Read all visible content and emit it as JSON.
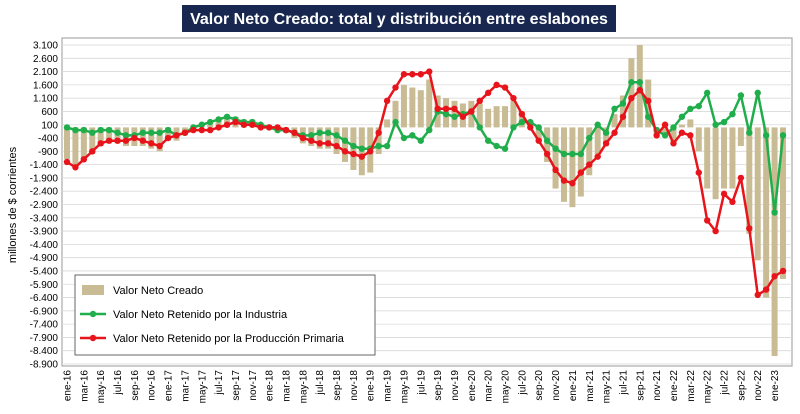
{
  "chart_data": {
    "type": "bar",
    "title": "Valor Neto Creado: total y distribución entre eslabones",
    "y_label": "millones de $ corrientes",
    "categories": [
      "ene-16",
      null,
      "mar-16",
      null,
      "may-16",
      null,
      "jul-16",
      null,
      "sep-16",
      null,
      "nov-16",
      null,
      "ene-17",
      null,
      "mar-17",
      null,
      "may-17",
      null,
      "jul-17",
      null,
      "sep-17",
      null,
      "nov-17",
      null,
      "ene-18",
      null,
      "mar-18",
      null,
      "may-18",
      null,
      "jul-18",
      null,
      "sep-18",
      null,
      "nov-18",
      null,
      "ene-19",
      null,
      "mar-19",
      null,
      "may-19",
      null,
      "jul-19",
      null,
      "sep-19",
      null,
      "nov-19",
      null,
      "ene-20",
      null,
      "mar-20",
      null,
      "may-20",
      null,
      "jul-20",
      null,
      "sep-20",
      null,
      "nov-20",
      null,
      "ene-21",
      null,
      "mar-21",
      null,
      "may-21",
      null,
      "jul-21",
      null,
      "sep-21",
      null,
      "nov-21",
      null,
      "ene-22",
      null,
      "mar-22",
      null,
      "may-22",
      null,
      "jul-22",
      null,
      "sep-22",
      null,
      "nov-22",
      null,
      "ene-23",
      null
    ],
    "series": [
      {
        "name": "Valor Neto Creado",
        "type": "bar",
        "color": "#c9bc94",
        "values": [
          -1200,
          -1400,
          -1200,
          -1000,
          -700,
          -600,
          -600,
          -700,
          -700,
          -700,
          -800,
          -900,
          -500,
          -500,
          -300,
          -100,
          0,
          100,
          300,
          400,
          400,
          300,
          300,
          100,
          0,
          -100,
          -200,
          -400,
          -600,
          -700,
          -800,
          -800,
          -1000,
          -1300,
          -1600,
          -1800,
          -1700,
          -1000,
          300,
          1000,
          1600,
          1500,
          1400,
          1800,
          1200,
          1100,
          1000,
          900,
          1000,
          900,
          700,
          800,
          800,
          1000,
          600,
          200,
          -500,
          -1300,
          -2300,
          -2800,
          -3000,
          -2600,
          -1800,
          -1000,
          -700,
          500,
          1200,
          2600,
          3100,
          1800,
          -300,
          -300,
          -600,
          100,
          300,
          -900,
          -2300,
          -2700,
          -2300,
          -2300,
          -700,
          -4000,
          -5000,
          -6400,
          -8600,
          -5700
        ]
      },
      {
        "name": "Valor Neto Retenido por la Industria",
        "type": "line",
        "color": "#1fae4b",
        "values": [
          0,
          -100,
          -100,
          -200,
          -100,
          -100,
          -200,
          -300,
          -300,
          -200,
          -200,
          -200,
          -100,
          -300,
          -200,
          0,
          100,
          200,
          300,
          400,
          300,
          200,
          200,
          100,
          0,
          -100,
          -100,
          -200,
          -300,
          -300,
          -200,
          -200,
          -300,
          -500,
          -700,
          -800,
          -800,
          -700,
          -700,
          200,
          -400,
          -300,
          -500,
          -100,
          600,
          500,
          400,
          500,
          600,
          0,
          -500,
          -700,
          -800,
          0,
          200,
          200,
          0,
          -500,
          -800,
          -1000,
          -1000,
          -1000,
          -400,
          100,
          -200,
          700,
          900,
          1700,
          1700,
          400,
          -100,
          -300,
          0,
          400,
          700,
          800,
          1300,
          100,
          200,
          500,
          1200,
          -200,
          1300,
          -300,
          -3200,
          -300
        ]
      },
      {
        "name": "Valor Neto Retenido por la Producción Primaria",
        "type": "line",
        "color": "#e8141b",
        "values": [
          -1300,
          -1500,
          -1200,
          -900,
          -600,
          -500,
          -500,
          -500,
          -400,
          -500,
          -600,
          -700,
          -400,
          -300,
          -200,
          -100,
          -100,
          -100,
          0,
          100,
          200,
          100,
          100,
          0,
          0,
          0,
          -100,
          -200,
          -400,
          -500,
          -600,
          -600,
          -700,
          -900,
          -1000,
          -1100,
          -900,
          -200,
          1000,
          1500,
          2000,
          2000,
          2000,
          2100,
          700,
          700,
          700,
          400,
          600,
          1000,
          1300,
          1600,
          1500,
          1100,
          500,
          0,
          -500,
          -1000,
          -1600,
          -2000,
          -2100,
          -1700,
          -1400,
          -1100,
          -600,
          -200,
          400,
          1100,
          1400,
          1000,
          -300,
          100,
          -600,
          -200,
          -300,
          -1700,
          -3500,
          -3900,
          -2500,
          -2800,
          -1900,
          -3800,
          -6300,
          -6100,
          -5600,
          -5400
        ]
      }
    ],
    "ylim": [
      -8900,
      3100
    ],
    "yticks": [
      {
        "value": 3100,
        "label": "3.100"
      },
      {
        "value": 2600,
        "label": "2.600"
      },
      {
        "value": 2100,
        "label": "2.100"
      },
      {
        "value": 1600,
        "label": "1.600"
      },
      {
        "value": 1100,
        "label": "1.100"
      },
      600,
      100,
      -400,
      -900,
      {
        "value": -1400,
        "label": "-1.400"
      },
      {
        "value": -1900,
        "label": "-1.900"
      },
      {
        "value": -2400,
        "label": "-2.400"
      },
      {
        "value": -2900,
        "label": "-2.900"
      },
      {
        "value": -3400,
        "label": "-3.400"
      },
      {
        "value": -3900,
        "label": "-3.900"
      },
      {
        "value": -4400,
        "label": "-4.400"
      },
      {
        "value": -4900,
        "label": "-4.900"
      },
      {
        "value": -5400,
        "label": "-5.400"
      },
      {
        "value": -5900,
        "label": "-5.900"
      },
      {
        "value": -6400,
        "label": "-6.400"
      },
      {
        "value": -6900,
        "label": "-6.900"
      },
      {
        "value": -7400,
        "label": "-7.400"
      },
      {
        "value": -7900,
        "label": "-7.900"
      },
      {
        "value": -8400,
        "label": "-8.400"
      },
      {
        "value": -8900,
        "label": "-8.900"
      }
    ],
    "grid": true
  }
}
